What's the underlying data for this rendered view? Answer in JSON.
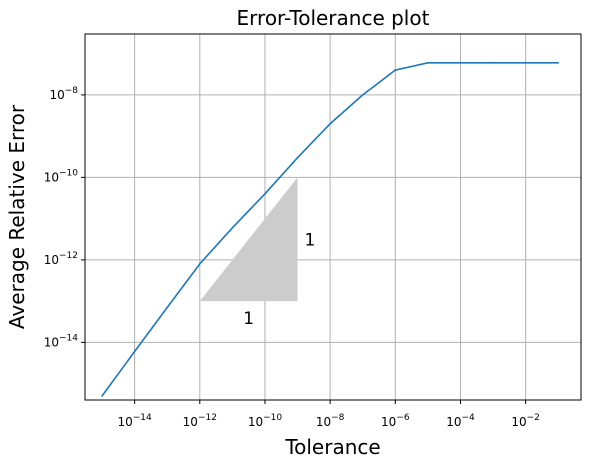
{
  "chart_data": {
    "type": "line",
    "title": "Error-Tolerance plot",
    "xlabel": "Tolerance",
    "ylabel": "Average Relative Error",
    "xscale": "log",
    "yscale": "log",
    "xlim": [
      3e-16,
      0.5
    ],
    "ylim": [
      4e-16,
      3e-07
    ],
    "grid": true,
    "xticks": [
      {
        "base": "10",
        "exp": "−14",
        "value": 1e-14
      },
      {
        "base": "10",
        "exp": "−12",
        "value": 1e-12
      },
      {
        "base": "10",
        "exp": "−10",
        "value": 1e-10
      },
      {
        "base": "10",
        "exp": "−8",
        "value": 1e-08
      },
      {
        "base": "10",
        "exp": "−6",
        "value": 1e-06
      },
      {
        "base": "10",
        "exp": "−4",
        "value": 0.0001
      },
      {
        "base": "10",
        "exp": "−2",
        "value": 0.01
      }
    ],
    "yticks": [
      {
        "base": "10",
        "exp": "−14",
        "value": 1e-14
      },
      {
        "base": "10",
        "exp": "−12",
        "value": 1e-12
      },
      {
        "base": "10",
        "exp": "−10",
        "value": 1e-10
      },
      {
        "base": "10",
        "exp": "−8",
        "value": 1e-08
      }
    ],
    "series": [
      {
        "color": "#1f77b4",
        "x": [
          1e-15,
          1e-14,
          1e-13,
          1e-12,
          1e-11,
          1e-10,
          1e-09,
          1e-08,
          1e-07,
          1e-06,
          1e-05,
          0.0001,
          0.001,
          0.01,
          0.1
        ],
        "y": [
          5e-16,
          6e-15,
          7e-14,
          8e-13,
          6e-12,
          4e-11,
          3e-10,
          2e-09,
          1e-08,
          4e-08,
          6e-08,
          6e-08,
          6e-08,
          6e-08,
          6e-08
        ]
      }
    ],
    "slope_triangle": {
      "vertices": [
        [
          1e-12,
          1e-13
        ],
        [
          1e-09,
          1e-13
        ],
        [
          1e-09,
          1e-10
        ]
      ],
      "color": "#cccccc",
      "horizontal_label": "1",
      "vertical_label": "1"
    }
  }
}
